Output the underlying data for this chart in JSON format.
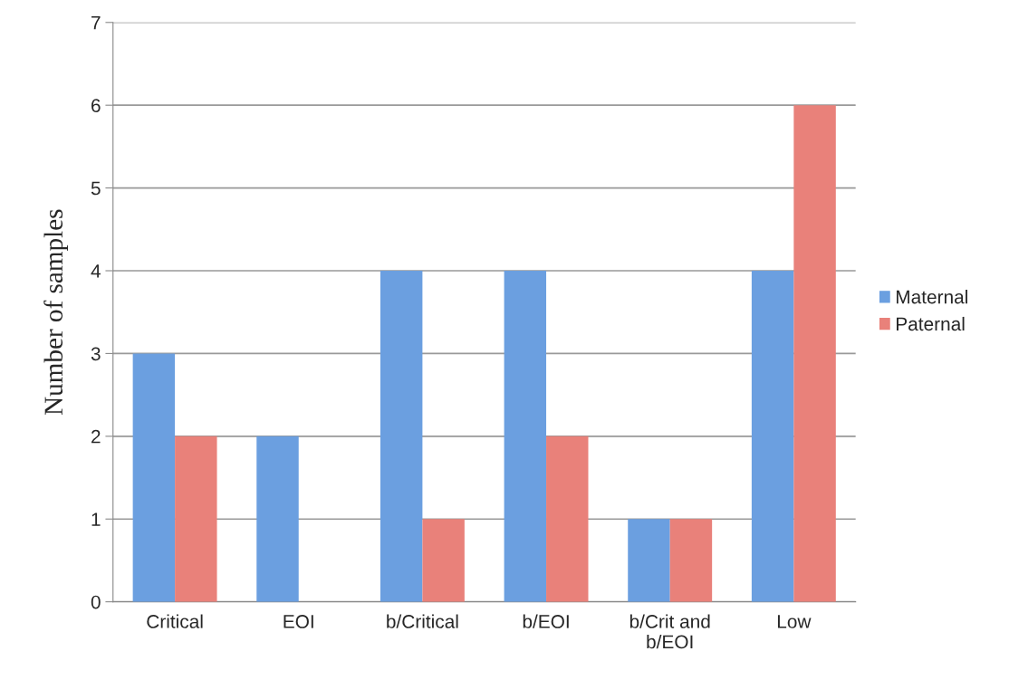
{
  "chart_data": {
    "type": "bar",
    "ylabel": "Number of samples",
    "categories": [
      "Critical",
      "EOI",
      "b/Critical",
      "b/EOI",
      "b/Crit and\nb/EOI",
      "Low"
    ],
    "series": [
      {
        "name": "Maternal",
        "color": "#6b9fe0",
        "values": [
          3,
          2,
          4,
          4,
          1,
          4
        ]
      },
      {
        "name": "Paternal",
        "color": "#e9817a",
        "values": [
          2,
          0,
          1,
          2,
          1,
          6
        ]
      }
    ],
    "ylim": [
      0,
      7
    ],
    "yticks": [
      0,
      1,
      2,
      3,
      4,
      5,
      6,
      7
    ],
    "grid": "y",
    "legend": "right"
  }
}
